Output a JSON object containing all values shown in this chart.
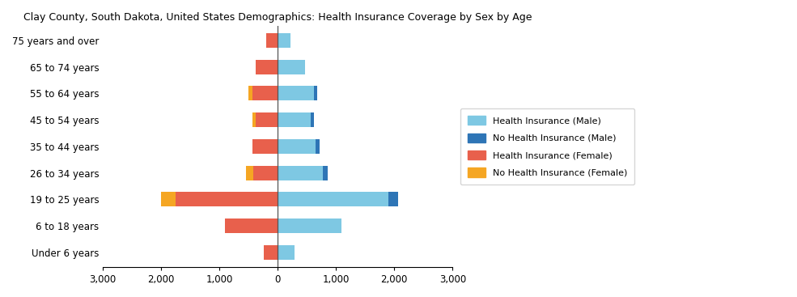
{
  "title": "Clay County, South Dakota, United States Demographics: Health Insurance Coverage by Sex by Age",
  "age_groups": [
    "Under 6 years",
    "6 to 18 years",
    "19 to 25 years",
    "26 to 34 years",
    "35 to 44 years",
    "45 to 54 years",
    "55 to 64 years",
    "65 to 74 years",
    "75 years and over"
  ],
  "male_insured": [
    290,
    1100,
    1900,
    780,
    650,
    560,
    620,
    470,
    220
  ],
  "male_uninsured": [
    0,
    0,
    160,
    80,
    70,
    55,
    60,
    0,
    0
  ],
  "female_insured": [
    240,
    900,
    1750,
    420,
    440,
    380,
    430,
    380,
    195
  ],
  "female_uninsured": [
    0,
    0,
    260,
    130,
    0,
    60,
    70,
    0,
    0
  ],
  "color_male_insured": "#7EC8E3",
  "color_male_uninsured": "#2E75B6",
  "color_female_insured": "#E8604C",
  "color_female_uninsured": "#F5A623",
  "xlim": 3000,
  "background_color": "#ffffff"
}
